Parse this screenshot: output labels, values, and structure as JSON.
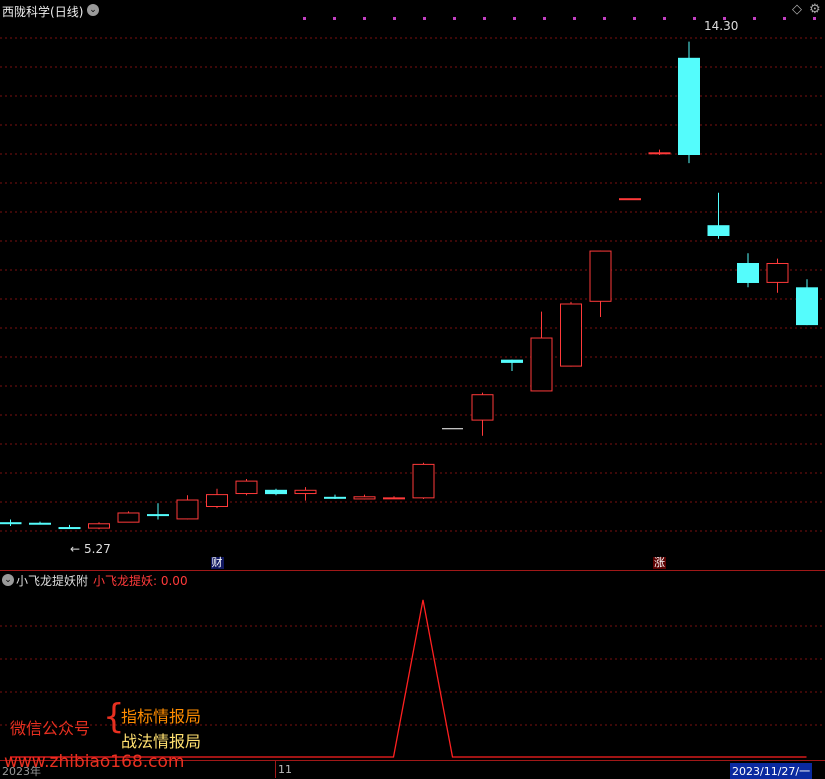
{
  "stock": {
    "name": "西陇科学",
    "period": "(日线)"
  },
  "main": {
    "ylim": [
      4.7,
      14.7
    ],
    "high_label": "14.30",
    "low_label": "5.27",
    "badges": [
      {
        "text": "财",
        "index": 7
      },
      {
        "text": "涨",
        "index": 22
      }
    ]
  },
  "indicator": {
    "name": "小飞龙提妖附",
    "line_label": "小飞龙提妖: 0.00",
    "ylim": [
      0,
      1.05
    ]
  },
  "xaxis": {
    "labels": [
      "2023年",
      "11"
    ],
    "date_readout": "2023/11/27/一"
  },
  "watermark": {
    "left": "微信公众号",
    "line1": "指标情报局",
    "line2": "战法情报局",
    "url": "www.zhibiao168.com"
  },
  "colors": {
    "up": "#ff3a3a",
    "down": "#54fcfc",
    "indicator": "#ff2020",
    "grid": "#7a1010"
  },
  "chart_data": {
    "type": "candlestick",
    "title": "西陇科学 (日线)",
    "ohlc": [
      {
        "o": 5.4,
        "h": 5.45,
        "l": 5.33,
        "c": 5.38
      },
      {
        "o": 5.39,
        "h": 5.41,
        "l": 5.36,
        "c": 5.37
      },
      {
        "o": 5.31,
        "h": 5.35,
        "l": 5.28,
        "c": 5.29
      },
      {
        "o": 5.3,
        "h": 5.4,
        "l": 5.27,
        "c": 5.38
      },
      {
        "o": 5.41,
        "h": 5.6,
        "l": 5.4,
        "c": 5.58
      },
      {
        "o": 5.55,
        "h": 5.75,
        "l": 5.45,
        "c": 5.52
      },
      {
        "o": 5.47,
        "h": 5.9,
        "l": 5.45,
        "c": 5.82
      },
      {
        "o": 5.7,
        "h": 6.02,
        "l": 5.66,
        "c": 5.92
      },
      {
        "o": 5.94,
        "h": 6.2,
        "l": 5.9,
        "c": 6.17
      },
      {
        "o": 6.0,
        "h": 6.02,
        "l": 5.9,
        "c": 5.92
      },
      {
        "o": 5.94,
        "h": 6.05,
        "l": 5.8,
        "c": 6.0
      },
      {
        "o": 5.87,
        "h": 5.91,
        "l": 5.83,
        "c": 5.86
      },
      {
        "o": 5.84,
        "h": 5.91,
        "l": 5.82,
        "c": 5.88
      },
      {
        "o": 5.85,
        "h": 5.88,
        "l": 5.83,
        "c": 5.86
      },
      {
        "o": 5.86,
        "h": 6.5,
        "l": 5.83,
        "c": 6.48
      },
      {
        "o": 7.13,
        "h": 7.13,
        "l": 7.13,
        "c": 7.13
      },
      {
        "o": 7.3,
        "h": 7.8,
        "l": 7.0,
        "c": 7.77
      },
      {
        "o": 8.41,
        "h": 8.41,
        "l": 8.2,
        "c": 8.35
      },
      {
        "o": 7.84,
        "h": 9.3,
        "l": 7.84,
        "c": 8.82
      },
      {
        "o": 8.3,
        "h": 9.48,
        "l": 8.28,
        "c": 9.45
      },
      {
        "o": 9.5,
        "h": 10.43,
        "l": 9.2,
        "c": 10.43
      },
      {
        "o": 11.4,
        "h": 11.4,
        "l": 11.4,
        "c": 11.4
      },
      {
        "o": 12.24,
        "h": 12.3,
        "l": 12.2,
        "c": 12.25
      },
      {
        "o": 14.0,
        "h": 14.3,
        "l": 12.05,
        "c": 12.2
      },
      {
        "o": 10.9,
        "h": 11.5,
        "l": 10.65,
        "c": 10.7
      },
      {
        "o": 10.2,
        "h": 10.38,
        "l": 9.75,
        "c": 9.83
      },
      {
        "o": 9.85,
        "h": 10.28,
        "l": 9.65,
        "c": 10.2
      },
      {
        "o": 9.75,
        "h": 9.9,
        "l": 9.05,
        "c": 9.05
      }
    ],
    "indicator_values": [
      0,
      0,
      0,
      0,
      0,
      0,
      0,
      0,
      0,
      0,
      0,
      0,
      0,
      0,
      1,
      0,
      0,
      0,
      0,
      0,
      0,
      0,
      0,
      0,
      0,
      0,
      0,
      0
    ]
  }
}
